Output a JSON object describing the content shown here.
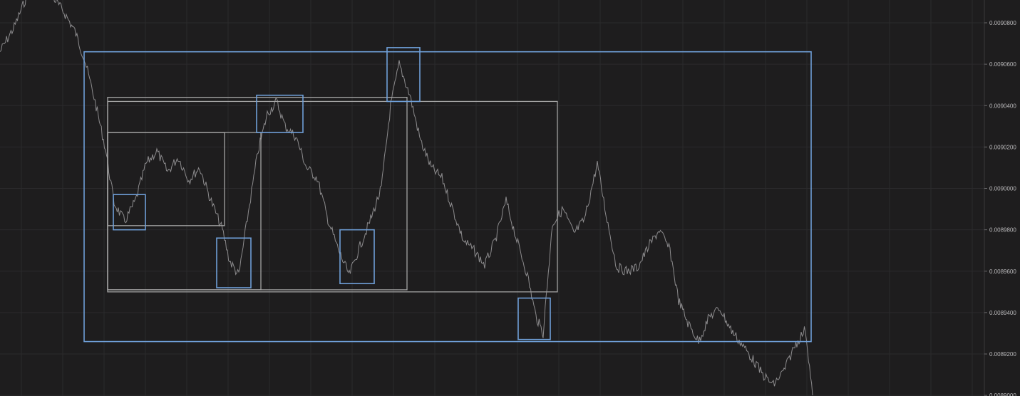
{
  "chart_data": {
    "type": "line",
    "title": "",
    "xlabel": "",
    "ylabel": "",
    "grid": true,
    "ylim": [
      0.00888,
      0.00911
    ],
    "y_ticks": [
      "0.0089000",
      "0.0089200",
      "0.0089400",
      "0.0089600",
      "0.0089800",
      "0.0090000",
      "0.0090200",
      "0.0090400",
      "0.0090600",
      "0.0090800"
    ],
    "colors": {
      "background": "#1e1d1e",
      "price": "#8c8b8d",
      "box_blue": "#6f9fd8",
      "box_gray": "#a3a3a3",
      "grid": "#2b2a2c",
      "tick_text": "#b9b8ba"
    },
    "series": [
      {
        "x": [
          0,
          20,
          40,
          55,
          75,
          90,
          105,
          118,
          132,
          148,
          160,
          175,
          190,
          205,
          220,
          235,
          250,
          265,
          280,
          295,
          312,
          322,
          335,
          350,
          362,
          375,
          388,
          400,
          415,
          430,
          445,
          460,
          475,
          490,
          505,
          520,
          535,
          548,
          560,
          575,
          590,
          605,
          620,
          635,
          650,
          665,
          680,
          695,
          710,
          725,
          740,
          752,
          762,
          775,
          790,
          805,
          820,
          838,
          850,
          865,
          880,
          895,
          910,
          925,
          940,
          952,
          965,
          980,
          995,
          1010,
          1025,
          1040,
          1055,
          1070,
          1085,
          1100,
          1115,
          1130,
          1140
        ],
        "values": [
          0.009066,
          0.009078,
          0.009095,
          0.009104,
          0.009092,
          0.009085,
          0.009076,
          0.009063,
          0.009044,
          0.009019,
          0.008993,
          0.008984,
          0.008994,
          0.009012,
          0.009018,
          0.009008,
          0.009015,
          0.009004,
          0.00901,
          0.008995,
          0.00898,
          0.008965,
          0.008958,
          0.008992,
          0.009018,
          0.009036,
          0.009042,
          0.00903,
          0.009025,
          0.00901,
          0.009005,
          0.008985,
          0.00897,
          0.008958,
          0.008972,
          0.008985,
          0.009,
          0.00904,
          0.00906,
          0.009045,
          0.009023,
          0.00901,
          0.009005,
          0.00899,
          0.008975,
          0.00897,
          0.008963,
          0.008975,
          0.008994,
          0.008975,
          0.008958,
          0.008938,
          0.00893,
          0.008983,
          0.00899,
          0.008978,
          0.008985,
          0.009012,
          0.008988,
          0.008962,
          0.00896,
          0.008962,
          0.008972,
          0.00898,
          0.00897,
          0.008946,
          0.008935,
          0.008926,
          0.008938,
          0.008942,
          0.008932,
          0.008925,
          0.008918,
          0.00891,
          0.008905,
          0.008912,
          0.008924,
          0.008932,
          0.0089
        ]
      }
    ],
    "annotations": [
      {
        "color": "box_blue",
        "x": [
          118,
          1138
        ],
        "y": [
          0.009066,
          0.008926
        ]
      },
      {
        "color": "box_gray",
        "x": [
          151,
          782
        ],
        "y": [
          0.009042,
          0.00895
        ]
      },
      {
        "color": "box_gray",
        "x": [
          151,
          571
        ],
        "y": [
          0.009044,
          0.008951
        ]
      },
      {
        "color": "box_gray",
        "x": [
          151,
          366
        ],
        "y": [
          0.009027,
          0.008951
        ]
      },
      {
        "color": "box_gray",
        "x": [
          151,
          315
        ],
        "y": [
          0.009027,
          0.008982
        ]
      },
      {
        "color": "box_blue",
        "x": [
          159,
          204
        ],
        "y": [
          0.008997,
          0.00898
        ]
      },
      {
        "color": "box_blue",
        "x": [
          304,
          352
        ],
        "y": [
          0.008976,
          0.008952
        ]
      },
      {
        "color": "box_blue",
        "x": [
          360,
          425
        ],
        "y": [
          0.009045,
          0.009027
        ]
      },
      {
        "color": "box_blue",
        "x": [
          477,
          525
        ],
        "y": [
          0.00898,
          0.008954
        ]
      },
      {
        "color": "box_blue",
        "x": [
          543,
          589
        ],
        "y": [
          0.009068,
          0.009042
        ]
      },
      {
        "color": "box_blue",
        "x": [
          727,
          772
        ],
        "y": [
          0.008947,
          0.008927
        ]
      }
    ]
  }
}
